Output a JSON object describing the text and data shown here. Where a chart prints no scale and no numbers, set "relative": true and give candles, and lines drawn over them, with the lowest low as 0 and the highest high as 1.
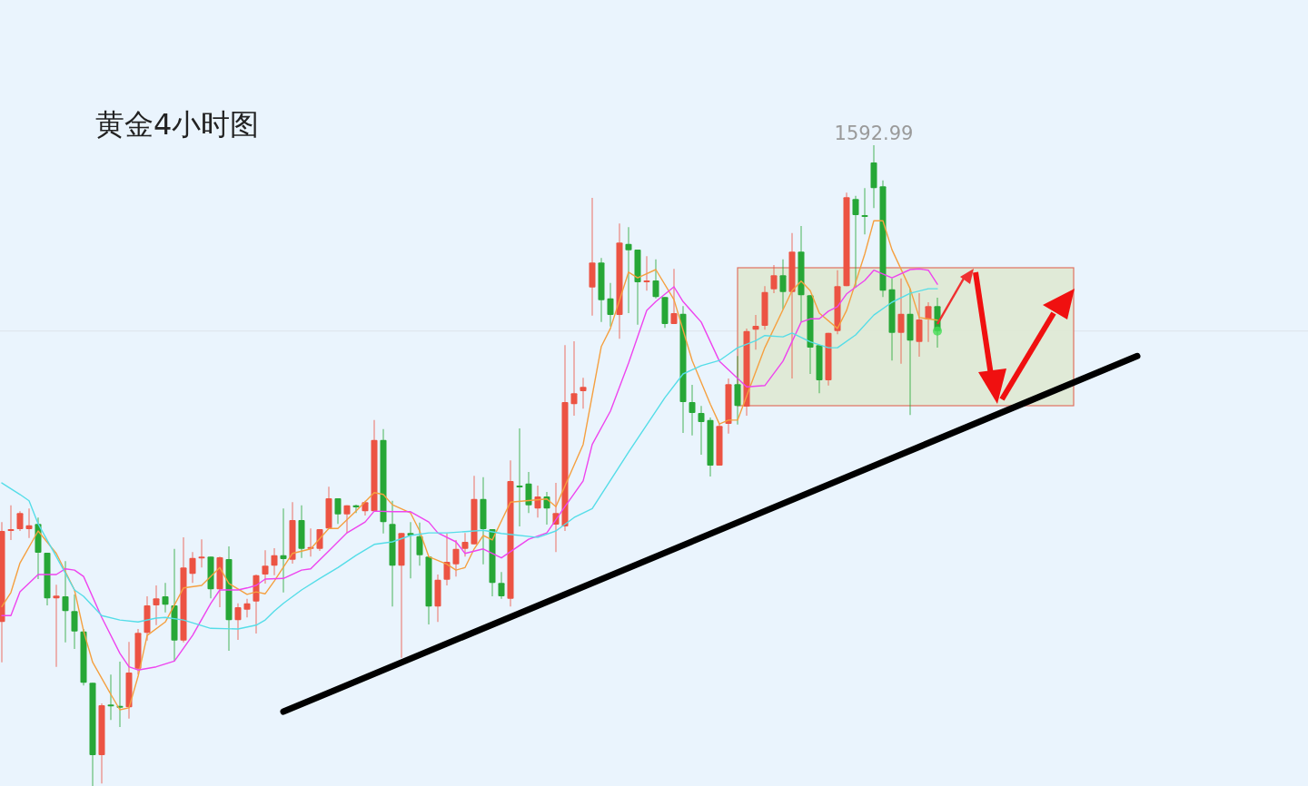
{
  "chart_data": {
    "type": "candlestick",
    "title": "黄金4小时图",
    "relative": true,
    "categories": [
      null,
      null,
      null,
      null,
      null,
      null,
      null,
      null,
      null,
      null,
      null,
      null,
      null,
      null,
      null,
      null,
      null,
      null,
      null,
      null,
      null,
      null,
      null,
      null,
      null,
      null,
      null,
      null,
      null,
      null,
      null,
      null,
      null,
      null,
      null,
      null,
      null,
      null,
      null,
      null,
      null,
      null,
      null,
      null,
      null,
      null,
      null,
      null,
      null,
      null,
      null,
      null,
      null,
      null,
      null,
      null,
      null,
      null,
      null,
      null,
      null,
      null,
      null,
      null,
      null,
      null,
      null,
      null,
      null,
      null,
      null,
      null,
      null,
      null,
      null,
      null,
      null,
      null,
      null,
      null,
      null,
      null,
      null,
      null,
      null,
      null,
      null,
      null,
      null,
      null,
      null,
      null,
      null,
      null,
      null,
      null,
      null,
      null,
      null,
      null,
      null,
      null,
      null,
      null,
      null,
      null,
      null,
      null,
      null,
      null,
      null,
      null,
      null,
      null,
      null,
      null,
      null,
      null,
      null,
      null,
      null,
      null,
      null,
      null,
      null,
      null
    ],
    "ohlc": [
      [
        0.256,
        0.412,
        0.193,
        0.398
      ],
      [
        0.398,
        0.438,
        0.384,
        0.401
      ],
      [
        0.401,
        0.429,
        0.398,
        0.426
      ],
      [
        0.401,
        0.433,
        0.387,
        0.407
      ],
      [
        0.409,
        0.419,
        0.323,
        0.364
      ],
      [
        0.364,
        0.364,
        0.282,
        0.293
      ],
      [
        0.293,
        0.314,
        0.186,
        0.297
      ],
      [
        0.296,
        0.351,
        0.224,
        0.273
      ],
      [
        0.273,
        0.299,
        0.214,
        0.241
      ],
      [
        0.241,
        0.245,
        0.157,
        0.161
      ],
      [
        0.161,
        0.161,
        0.0,
        0.048
      ],
      [
        0.048,
        0.129,
        0.004,
        0.126
      ],
      [
        0.127,
        0.174,
        0.103,
        0.126
      ],
      [
        0.125,
        0.194,
        0.092,
        0.123
      ],
      [
        0.123,
        0.225,
        0.105,
        0.177
      ],
      [
        0.183,
        0.245,
        0.174,
        0.239
      ],
      [
        0.239,
        0.296,
        0.227,
        0.282
      ],
      [
        0.282,
        0.313,
        0.251,
        0.293
      ],
      [
        0.296,
        0.317,
        0.271,
        0.283
      ],
      [
        0.282,
        0.37,
        0.195,
        0.227
      ],
      [
        0.227,
        0.388,
        0.224,
        0.341
      ],
      [
        0.331,
        0.365,
        0.317,
        0.356
      ],
      [
        0.356,
        0.385,
        0.341,
        0.358
      ],
      [
        0.358,
        0.358,
        0.293,
        0.307
      ],
      [
        0.307,
        0.358,
        0.279,
        0.357
      ],
      [
        0.354,
        0.374,
        0.211,
        0.259
      ],
      [
        0.259,
        0.285,
        0.228,
        0.279
      ],
      [
        0.275,
        0.292,
        0.263,
        0.285
      ],
      [
        0.288,
        0.33,
        0.238,
        0.329
      ],
      [
        0.33,
        0.368,
        0.316,
        0.344
      ],
      [
        0.344,
        0.371,
        0.329,
        0.36
      ],
      [
        0.36,
        0.433,
        0.302,
        0.354
      ],
      [
        0.353,
        0.443,
        0.347,
        0.415
      ],
      [
        0.415,
        0.438,
        0.356,
        0.37
      ],
      [
        0.37,
        0.402,
        0.358,
        0.373
      ],
      [
        0.37,
        0.401,
        0.367,
        0.401
      ],
      [
        0.402,
        0.467,
        0.402,
        0.449
      ],
      [
        0.449,
        0.449,
        0.409,
        0.424
      ],
      [
        0.424,
        0.438,
        0.395,
        0.438
      ],
      [
        0.438,
        0.439,
        0.426,
        0.435
      ],
      [
        0.429,
        0.445,
        0.422,
        0.443
      ],
      [
        0.429,
        0.571,
        0.429,
        0.54
      ],
      [
        0.54,
        0.557,
        0.394,
        0.412
      ],
      [
        0.409,
        0.445,
        0.28,
        0.344
      ],
      [
        0.344,
        0.395,
        0.2,
        0.395
      ],
      [
        0.395,
        0.412,
        0.324,
        0.391
      ],
      [
        0.39,
        0.411,
        0.344,
        0.36
      ],
      [
        0.358,
        0.358,
        0.252,
        0.28
      ],
      [
        0.28,
        0.33,
        0.256,
        0.322
      ],
      [
        0.322,
        0.394,
        0.313,
        0.35
      ],
      [
        0.346,
        0.384,
        0.327,
        0.37
      ],
      [
        0.37,
        0.395,
        0.358,
        0.381
      ],
      [
        0.377,
        0.484,
        0.377,
        0.448
      ],
      [
        0.448,
        0.482,
        0.346,
        0.401
      ],
      [
        0.401,
        0.401,
        0.296,
        0.317
      ],
      [
        0.317,
        0.334,
        0.292,
        0.296
      ],
      [
        0.292,
        0.508,
        0.28,
        0.476
      ],
      [
        0.469,
        0.558,
        0.405,
        0.466
      ],
      [
        0.472,
        0.49,
        0.426,
        0.438
      ],
      [
        0.433,
        0.469,
        0.419,
        0.452
      ],
      [
        0.452,
        0.459,
        0.408,
        0.433
      ],
      [
        0.408,
        0.473,
        0.365,
        0.426
      ],
      [
        0.405,
        0.688,
        0.398,
        0.599
      ],
      [
        0.596,
        0.694,
        0.578,
        0.613
      ],
      [
        0.616,
        0.637,
        0.589,
        0.623
      ],
      [
        0.778,
        0.918,
        0.734,
        0.817
      ],
      [
        0.817,
        0.824,
        0.724,
        0.758
      ],
      [
        0.761,
        0.785,
        0.717,
        0.735
      ],
      [
        0.735,
        0.878,
        0.698,
        0.848
      ],
      [
        0.846,
        0.872,
        0.738,
        0.836
      ],
      [
        0.837,
        0.837,
        0.72,
        0.786
      ],
      [
        0.786,
        0.827,
        0.773,
        0.789
      ],
      [
        0.789,
        0.822,
        0.761,
        0.763
      ],
      [
        0.763,
        0.763,
        0.715,
        0.721
      ],
      [
        0.721,
        0.807,
        0.721,
        0.738
      ],
      [
        0.737,
        0.749,
        0.551,
        0.599
      ],
      [
        0.599,
        0.626,
        0.547,
        0.582
      ],
      [
        0.582,
        0.593,
        0.517,
        0.568
      ],
      [
        0.571,
        0.575,
        0.483,
        0.5
      ],
      [
        0.5,
        0.565,
        0.5,
        0.562
      ],
      [
        0.565,
        0.636,
        0.55,
        0.627
      ],
      [
        0.627,
        0.671,
        0.564,
        0.593
      ],
      [
        0.592,
        0.714,
        0.578,
        0.71
      ],
      [
        0.712,
        0.735,
        0.681,
        0.718
      ],
      [
        0.718,
        0.78,
        0.712,
        0.771
      ],
      [
        0.775,
        0.813,
        0.769,
        0.797
      ],
      [
        0.797,
        0.822,
        0.744,
        0.771
      ],
      [
        0.771,
        0.863,
        0.636,
        0.834
      ],
      [
        0.834,
        0.874,
        0.724,
        0.766
      ],
      [
        0.766,
        0.766,
        0.643,
        0.684
      ],
      [
        0.688,
        0.688,
        0.613,
        0.633
      ],
      [
        0.633,
        0.707,
        0.625,
        0.707
      ],
      [
        0.71,
        0.805,
        0.705,
        0.78
      ],
      [
        0.78,
        0.926,
        0.78,
        0.919
      ],
      [
        0.916,
        0.921,
        0.778,
        0.891
      ],
      [
        0.891,
        0.933,
        0.861,
        0.888
      ],
      [
        0.973,
        1.0,
        0.902,
        0.933
      ],
      [
        0.936,
        0.945,
        0.763,
        0.773
      ],
      [
        0.775,
        0.792,
        0.664,
        0.707
      ],
      [
        0.707,
        0.792,
        0.659,
        0.737
      ],
      [
        0.737,
        0.776,
        0.579,
        0.695
      ],
      [
        0.693,
        0.769,
        0.67,
        0.728
      ],
      [
        0.728,
        0.755,
        0.693,
        0.749
      ],
      [
        0.749,
        0.762,
        0.684,
        0.71
      ],
      null,
      null,
      null,
      null,
      null,
      null,
      null,
      null,
      null,
      null,
      null,
      null,
      null,
      null,
      null,
      null,
      null,
      null,
      null,
      null,
      null,
      null
    ],
    "colors": [
      "#ec5343",
      "#ec5343",
      "#ec5343",
      "#ec5343",
      "#27a737",
      "#27a737",
      "#ec5343",
      "#27a737",
      "#27a737",
      "#27a737",
      "#27a737",
      "#ec5343",
      "#27a737",
      "#27a737",
      "#ec5343",
      "#ec5343",
      "#ec5343",
      "#ec5343",
      "#27a737",
      "#27a737",
      "#ec5343",
      "#ec5343",
      "#ec5343",
      "#27a737",
      "#ec5343",
      "#27a737",
      "#ec5343",
      "#ec5343",
      "#ec5343",
      "#ec5343",
      "#ec5343",
      "#27a737",
      "#ec5343",
      "#27a737",
      "#ec5343",
      "#ec5343",
      "#ec5343",
      "#27a737",
      "#ec5343",
      "#27a737",
      "#ec5343",
      "#ec5343",
      "#27a737",
      "#27a737",
      "#ec5343",
      "#27a737",
      "#27a737",
      "#27a737",
      "#ec5343",
      "#ec5343",
      "#ec5343",
      "#ec5343",
      "#ec5343",
      "#27a737",
      "#27a737",
      "#27a737",
      "#ec5343",
      "#27a737",
      "#27a737",
      "#ec5343",
      "#27a737",
      "#ec5343",
      "#ec5343",
      "#ec5343",
      "#ec5343",
      "#ec5343",
      "#27a737",
      "#27a737",
      "#ec5343",
      "#27a737",
      "#27a737",
      "#ec5343",
      "#27a737",
      "#27a737",
      "#ec5343",
      "#27a737",
      "#27a737",
      "#27a737",
      "#27a737",
      "#ec5343",
      "#ec5343",
      "#27a737",
      "#ec5343",
      "#ec5343",
      "#ec5343",
      "#ec5343",
      "#27a737",
      "#ec5343",
      "#27a737",
      "#27a737",
      "#27a737",
      "#ec5343",
      "#ec5343",
      "#ec5343",
      "#27a737",
      "#27a737",
      "#27a737",
      "#27a737",
      "#27a737",
      "#ec5343",
      "#27a737",
      "#ec5343",
      "#ec5343",
      "#27a737",
      null,
      null,
      null,
      null,
      null,
      null,
      null,
      null,
      null,
      null,
      null,
      null,
      null,
      null,
      null,
      null,
      null,
      null,
      null,
      null,
      null,
      null
    ],
    "series": [
      {
        "type": "line",
        "color": "#f5a040",
        "values": [
          0.28,
          0.302,
          0.348,
          null,
          0.398,
          null,
          0.363,
          null,
          0.306,
          0.242,
          0.193,
          null,
          0.143,
          0.119,
          0.122,
          0.171,
          0.235,
          null,
          0.256,
          null,
          0.309,
          null,
          0.313,
          null,
          0.341,
          0.316,
          null,
          0.299,
          0.303,
          0.3,
          0.32,
          null,
          0.363,
          null,
          0.37,
          null,
          0.402,
          0.402,
          null,
          0.429,
          null,
          0.458,
          0.455,
          0.439,
          null,
          0.426,
          0.398,
          0.358,
          null,
          0.346,
          0.337,
          0.341,
          0.37,
          0.391,
          0.384,
          null,
          0.443,
          null,
          null,
          null,
          0.448,
          0.436,
          null,
          null,
          0.533,
          null,
          0.686,
          0.714,
          null,
          0.802,
          0.793,
          null,
          0.806,
          null,
          0.759,
          null,
          0.664,
          null,
          0.596,
          0.565,
          0.571,
          0.571,
          null,
          null,
          0.684,
          null,
          null,
          0.773,
          0.788,
          0.773,
          0.738,
          null,
          0.714,
          0.742,
          null,
          0.83,
          0.882,
          0.882,
          0.837,
          null,
          0.776,
          0.731,
          null,
          0.727,
          null,
          null,
          null,
          null,
          null,
          null,
          null,
          null,
          null,
          null,
          null,
          null,
          null,
          null,
          null,
          null,
          null,
          null,
          null,
          null,
          null,
          null
        ]
      },
      {
        "type": "line",
        "color": "#ee44ee",
        "values": [
          0.266,
          0.266,
          0.303,
          null,
          0.33,
          null,
          0.33,
          0.339,
          0.337,
          0.327,
          null,
          0.263,
          null,
          0.207,
          0.186,
          0.181,
          null,
          0.186,
          null,
          0.195,
          null,
          0.235,
          null,
          0.285,
          0.306,
          null,
          0.306,
          0.309,
          0.313,
          0.323,
          null,
          0.324,
          null,
          0.337,
          0.339,
          null,
          0.367,
          null,
          0.395,
          null,
          0.412,
          0.429,
          null,
          0.428,
          null,
          0.428,
          null,
          0.412,
          0.395,
          null,
          0.381,
          0.363,
          null,
          0.37,
          null,
          0.356,
          null,
          null,
          0.385,
          null,
          0.395,
          null,
          0.436,
          null,
          0.476,
          0.533,
          null,
          0.585,
          null,
          0.66,
          null,
          0.742,
          0.756,
          null,
          0.779,
          0.756,
          null,
          0.724,
          null,
          0.663,
          null,
          null,
          0.623,
          null,
          0.625,
          null,
          0.663,
          null,
          0.724,
          0.729,
          0.729,
          0.741,
          0.748,
          0.768,
          null,
          0.789,
          0.805,
          null,
          0.793,
          null,
          0.806,
          0.807,
          0.805,
          0.783,
          null,
          null,
          null,
          null,
          null,
          null,
          null,
          null,
          null,
          null,
          null,
          null,
          null,
          null,
          null,
          null,
          null,
          null,
          null,
          null,
          null,
          null
        ]
      },
      {
        "type": "line",
        "color": "#55dde8",
        "values": [
          0.473,
          null,
          0.455,
          0.445,
          0.409,
          null,
          0.358,
          null,
          0.306,
          0.296,
          null,
          0.266,
          null,
          0.259,
          null,
          0.256,
          null,
          0.262,
          0.263,
          null,
          0.259,
          null,
          null,
          0.246,
          null,
          null,
          0.245,
          null,
          0.251,
          0.259,
          0.273,
          0.285,
          null,
          0.306,
          null,
          0.324,
          null,
          0.341,
          null,
          0.36,
          null,
          0.377,
          null,
          0.381,
          null,
          0.391,
          null,
          0.395,
          null,
          0.395,
          null,
          0.397,
          null,
          0.399,
          null,
          0.394,
          null,
          null,
          null,
          0.388,
          null,
          0.398,
          null,
          0.419,
          null,
          0.433,
          null,
          null,
          null,
          0.521,
          null,
          null,
          null,
          0.606,
          null,
          0.643,
          null,
          0.656,
          null,
          0.664,
          0.674,
          0.684,
          null,
          0.695,
          0.703,
          null,
          0.701,
          0.707,
          null,
          0.693,
          null,
          0.684,
          0.684,
          null,
          0.704,
          null,
          0.735,
          null,
          0.755,
          null,
          0.769,
          null,
          0.776,
          0.776,
          null,
          null,
          null,
          null,
          null,
          null,
          null,
          null,
          null,
          null,
          null,
          null,
          null,
          null,
          null,
          null,
          null,
          null,
          null,
          null,
          null,
          null
        ]
      },
      {
        "type": "line",
        "color": "#000000",
        "values": [
          null,
          null,
          null,
          null,
          null,
          null,
          null,
          null,
          null,
          null,
          null,
          null,
          null,
          null,
          null,
          null,
          null,
          null,
          null,
          null,
          null,
          null,
          null,
          null,
          null,
          null,
          null,
          null,
          null,
          null,
          null,
          0.116,
          null,
          null,
          null,
          null,
          null,
          null,
          null,
          null,
          null,
          null,
          null,
          null,
          null,
          null,
          null,
          null,
          null,
          null,
          null,
          null,
          null,
          null,
          null,
          null,
          null,
          null,
          null,
          null,
          null,
          null,
          null,
          null,
          null,
          null,
          null,
          null,
          null,
          null,
          null,
          null,
          null,
          null,
          null,
          null,
          null,
          null,
          null,
          null,
          null,
          null,
          null,
          null,
          null,
          null,
          null,
          null,
          null,
          null,
          null,
          null,
          null,
          null,
          null,
          null,
          null,
          null,
          null,
          null,
          null,
          null,
          null,
          null,
          null,
          null,
          null,
          null,
          null,
          null,
          null,
          null,
          null,
          null,
          null,
          null,
          null,
          null,
          null,
          null,
          null,
          null,
          null,
          null,
          null,
          0.671
        ]
      }
    ],
    "annotations": [
      {
        "text": "1592.99",
        "y": 1.0
      }
    ],
    "ref_lines": [
      {
        "axis": "y",
        "value": 0.71,
        "color": "#dde3ea"
      }
    ]
  }
}
